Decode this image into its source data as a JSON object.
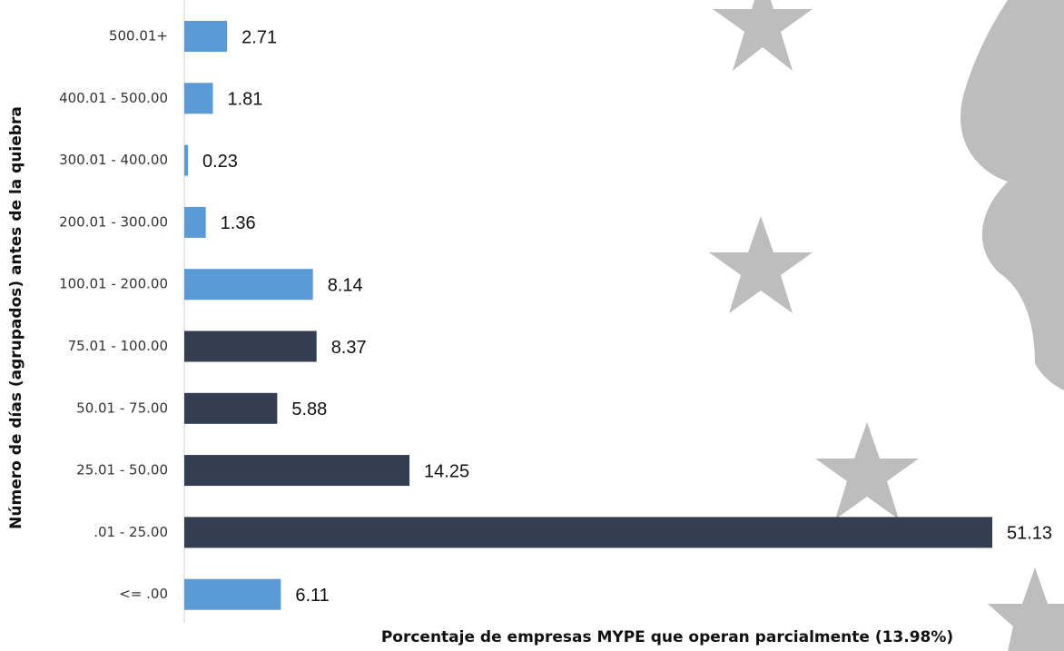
{
  "chart_data": {
    "type": "bar",
    "orientation": "horizontal",
    "x_label": "Porcentaje de empresas MYPE que operan parcialmente (13.98%)",
    "y_label": "Número de días (agrupados) antes de la quiebra",
    "categories": [
      "500.01+",
      "400.01 - 500.00",
      "300.01 - 400.00",
      "200.01 - 300.00",
      "100.01 - 200.00",
      "75.01 - 100.00",
      "50.01 - 75.00",
      "25.01 - 50.00",
      ".01 - 25.00",
      "<= .00"
    ],
    "values": [
      2.71,
      1.81,
      0.23,
      1.36,
      8.14,
      8.37,
      5.88,
      14.25,
      51.13,
      6.11
    ],
    "colors": [
      "#5b9bd5",
      "#5b9bd5",
      "#5b9bd5",
      "#5b9bd5",
      "#5b9bd5",
      "#333f50",
      "#333f50",
      "#333f50",
      "#333f50",
      "#5b9bd5"
    ]
  }
}
